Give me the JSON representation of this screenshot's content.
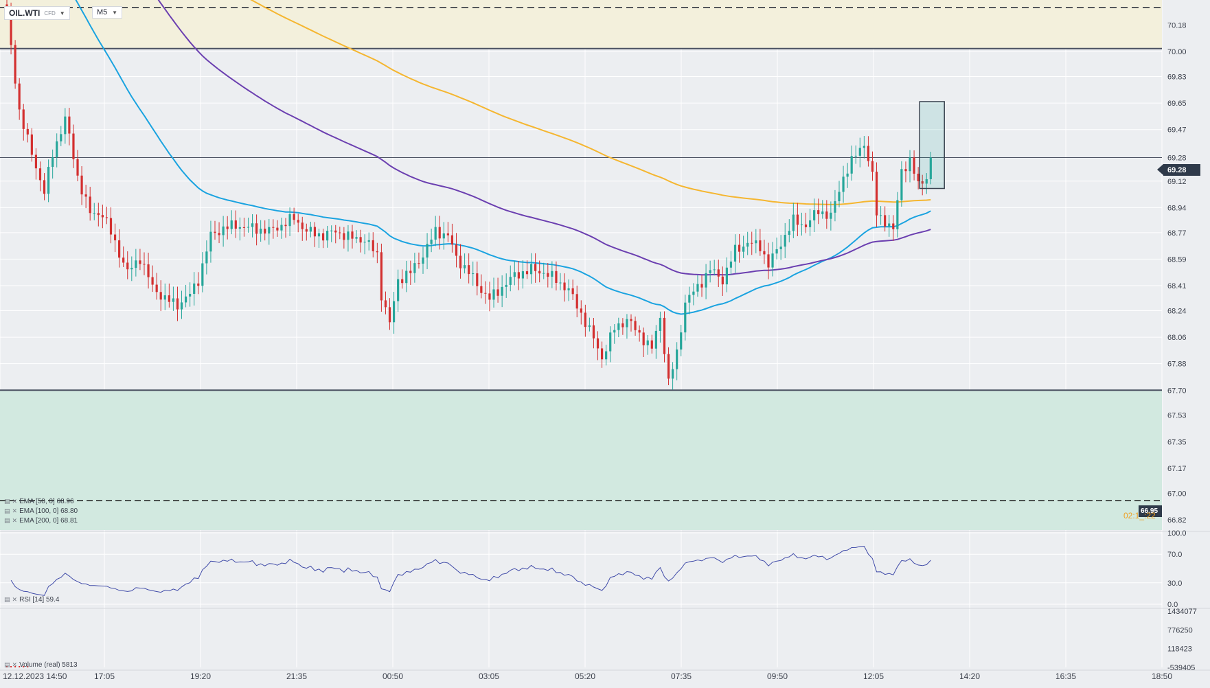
{
  "toolbar": {
    "symbol": "OIL.WTI",
    "symbol_type": "CFD",
    "timeframe": "M5"
  },
  "indicators": {
    "ema50": "EMA [50, 0] 68.96",
    "ema100": "EMA [100, 0] 68.80",
    "ema200": "EMA [200, 0] 68.81",
    "rsi": "RSI [14] 59.4",
    "volume": "Volume (real) 5813"
  },
  "price_tags": {
    "current": "69.28",
    "alert": "66.95",
    "timer": "02:1_:22"
  },
  "colors": {
    "bull": "#26a69a",
    "bear": "#d32f2f",
    "ema50": "#1aa3e0",
    "ema100": "#6b3fb0",
    "ema200": "#f5b630",
    "supply_zone": "#f3f0dc",
    "demand_zone": "#d2e9e0",
    "rsi_line": "#3f4aa8",
    "price_tag_bg": "#2f3a4a"
  },
  "chart_data": [
    {
      "type": "candlestick",
      "title": "OIL.WTI M5",
      "ylim": [
        66.75,
        70.35
      ],
      "y_ticks": [
        "70.18",
        "70.00",
        "69.83",
        "69.65",
        "69.47",
        "69.28",
        "69.12",
        "68.94",
        "68.77",
        "68.59",
        "68.41",
        "68.24",
        "68.06",
        "67.88",
        "67.70",
        "67.53",
        "67.35",
        "67.17",
        "67.00",
        "66.82"
      ],
      "x_ticks": [
        "12.12.2023 14:50",
        "17:05",
        "19:20",
        "21:35",
        "00:50",
        "03:05",
        "05:20",
        "07:35",
        "09:50",
        "12:05",
        "14:20",
        "16:35",
        "18:50"
      ],
      "horizontal_lines": {
        "resistance_dashed": 70.3,
        "resistance": 70.02,
        "current_price": 69.28,
        "support": 67.7,
        "alert_dashed": 66.95
      },
      "zones": {
        "supply": [
          70.02,
          70.35
        ],
        "demand": [
          66.75,
          67.7
        ]
      },
      "highlight_box": [
        69.07,
        69.66
      ],
      "close_path": [
        [
          0,
          70.3
        ],
        [
          1,
          70.02
        ],
        [
          3,
          69.6
        ],
        [
          6,
          69.3
        ],
        [
          9,
          69.05
        ],
        [
          11,
          69.3
        ],
        [
          14,
          69.55
        ],
        [
          17,
          69.15
        ],
        [
          20,
          68.9
        ],
        [
          23,
          68.9
        ],
        [
          26,
          68.7
        ],
        [
          29,
          68.5
        ],
        [
          32,
          68.6
        ],
        [
          35,
          68.4
        ],
        [
          38,
          68.32
        ],
        [
          41,
          68.28
        ],
        [
          44,
          68.35
        ],
        [
          46,
          68.45
        ],
        [
          49,
          68.75
        ],
        [
          52,
          68.8
        ],
        [
          55,
          68.82
        ],
        [
          59,
          68.8
        ],
        [
          63,
          68.78
        ],
        [
          66,
          68.82
        ],
        [
          69,
          68.87
        ],
        [
          72,
          68.78
        ],
        [
          76,
          68.75
        ],
        [
          79,
          68.78
        ],
        [
          82,
          68.74
        ],
        [
          86,
          68.72
        ],
        [
          89,
          68.62
        ],
        [
          90,
          68.35
        ],
        [
          92,
          68.15
        ],
        [
          94,
          68.45
        ],
        [
          97,
          68.5
        ],
        [
          100,
          68.62
        ],
        [
          103,
          68.78
        ],
        [
          106,
          68.75
        ],
        [
          108,
          68.6
        ],
        [
          111,
          68.5
        ],
        [
          114,
          68.38
        ],
        [
          116,
          68.32
        ],
        [
          119,
          68.4
        ],
        [
          122,
          68.48
        ],
        [
          126,
          68.52
        ],
        [
          129,
          68.5
        ],
        [
          132,
          68.45
        ],
        [
          135,
          68.38
        ],
        [
          138,
          68.22
        ],
        [
          141,
          68.05
        ],
        [
          143,
          67.92
        ],
        [
          146,
          68.12
        ],
        [
          149,
          68.18
        ],
        [
          152,
          68.08
        ],
        [
          155,
          67.98
        ],
        [
          157,
          68.2
        ],
        [
          159,
          67.75
        ],
        [
          161,
          67.95
        ],
        [
          163,
          68.3
        ],
        [
          166,
          68.4
        ],
        [
          169,
          68.52
        ],
        [
          172,
          68.45
        ],
        [
          175,
          68.65
        ],
        [
          178,
          68.7
        ],
        [
          181,
          68.68
        ],
        [
          183,
          68.55
        ],
        [
          186,
          68.7
        ],
        [
          189,
          68.85
        ],
        [
          192,
          68.82
        ],
        [
          195,
          68.92
        ],
        [
          198,
          68.88
        ],
        [
          201,
          69.15
        ],
        [
          204,
          69.3
        ],
        [
          206,
          69.38
        ],
        [
          208,
          69.15
        ],
        [
          209,
          68.9
        ],
        [
          211,
          68.85
        ],
        [
          213,
          68.78
        ],
        [
          215,
          69.2
        ],
        [
          217,
          69.25
        ],
        [
          219,
          69.1
        ],
        [
          221,
          69.15
        ],
        [
          222,
          69.28
        ]
      ],
      "series": [
        {
          "name": "EMA [50, 0]",
          "last": 68.96
        },
        {
          "name": "EMA [100, 0]",
          "last": 68.8
        },
        {
          "name": "EMA [200, 0]",
          "last": 68.81
        }
      ]
    },
    {
      "type": "line",
      "title": "RSI [14]",
      "ylim": [
        0,
        100
      ],
      "y_ticks": [
        "100.0",
        "70.0",
        "30.0",
        "0.0"
      ],
      "last": 59.4
    },
    {
      "type": "bar",
      "title": "Volume (real)",
      "y_ticks": [
        "1434077",
        "776250",
        "118423",
        "-539405"
      ],
      "last": 5813
    }
  ]
}
